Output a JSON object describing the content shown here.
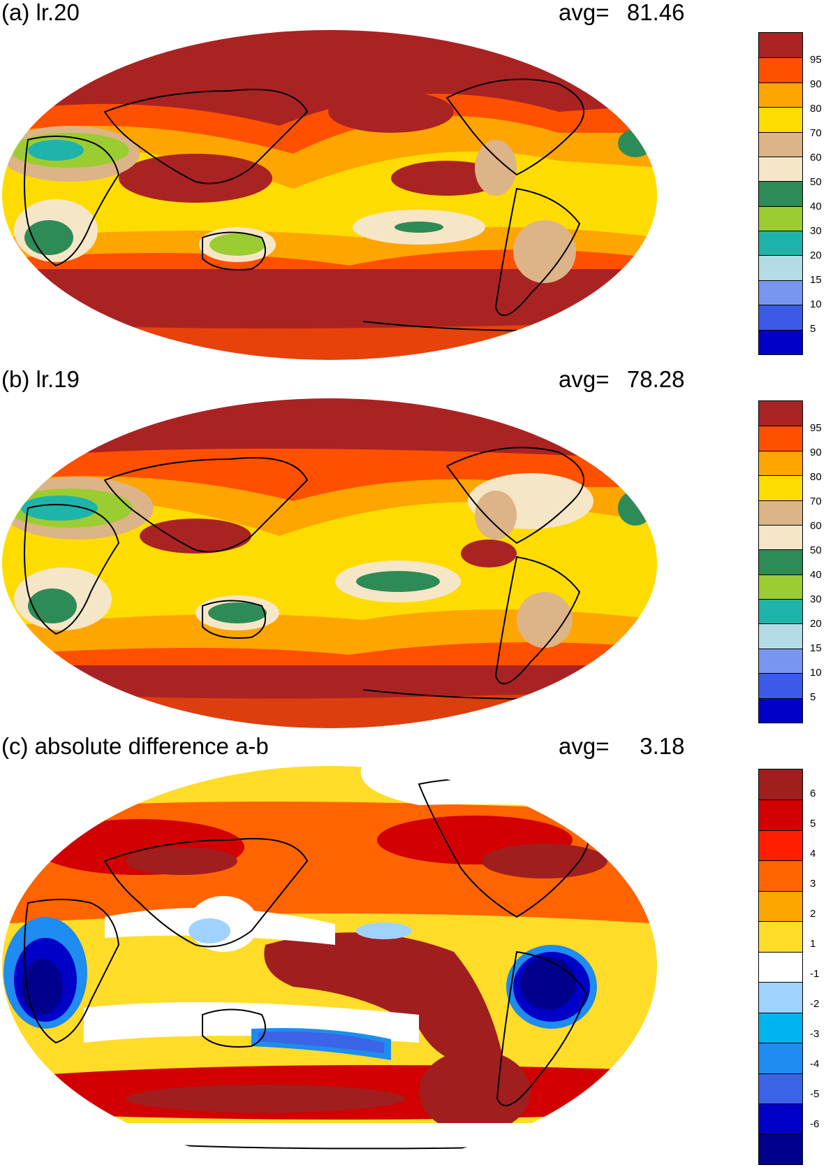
{
  "panels": [
    {
      "id": "a",
      "title": "(a) lr.20",
      "avg_label": "avg=",
      "avg_value": "81.46",
      "colorbar": {
        "colors": [
          "#0000c8",
          "#3c5ae6",
          "#7896ef",
          "#b4dce6",
          "#1eb4aa",
          "#9bcd32",
          "#2e8b57",
          "#f5e6c8",
          "#dcb487",
          "#ffdc00",
          "#ffa500",
          "#ff5000",
          "#aa2323"
        ],
        "labels": [
          "5",
          "10",
          "15",
          "20",
          "30",
          "40",
          "50",
          "60",
          "70",
          "80",
          "90",
          "95"
        ]
      }
    },
    {
      "id": "b",
      "title": "(b) lr.19",
      "avg_label": "avg=",
      "avg_value": "78.28",
      "colorbar": {
        "colors": [
          "#0000c8",
          "#3c5ae6",
          "#7896ef",
          "#b4dce6",
          "#1eb4aa",
          "#9bcd32",
          "#2e8b57",
          "#f5e6c8",
          "#dcb487",
          "#ffdc00",
          "#ffa500",
          "#ff5000",
          "#aa2323"
        ],
        "labels": [
          "5",
          "10",
          "15",
          "20",
          "30",
          "40",
          "50",
          "60",
          "70",
          "80",
          "90",
          "95"
        ]
      }
    },
    {
      "id": "c",
      "title": "(c) absolute difference a-b",
      "avg_label": "avg=",
      "avg_value": "3.18",
      "colorbar": {
        "colors": [
          "#00008c",
          "#0000c8",
          "#3c64e6",
          "#1e8cf0",
          "#00b4f0",
          "#a0d2ff",
          "#ffffff",
          "#ffdc28",
          "#ffa500",
          "#ff6400",
          "#ff1e00",
          "#d20000",
          "#a01e1e"
        ],
        "labels": [
          "-6",
          "-5",
          "-4",
          "-3",
          "-2",
          "-1",
          "1",
          "2",
          "3",
          "4",
          "5",
          "6"
        ]
      }
    }
  ]
}
